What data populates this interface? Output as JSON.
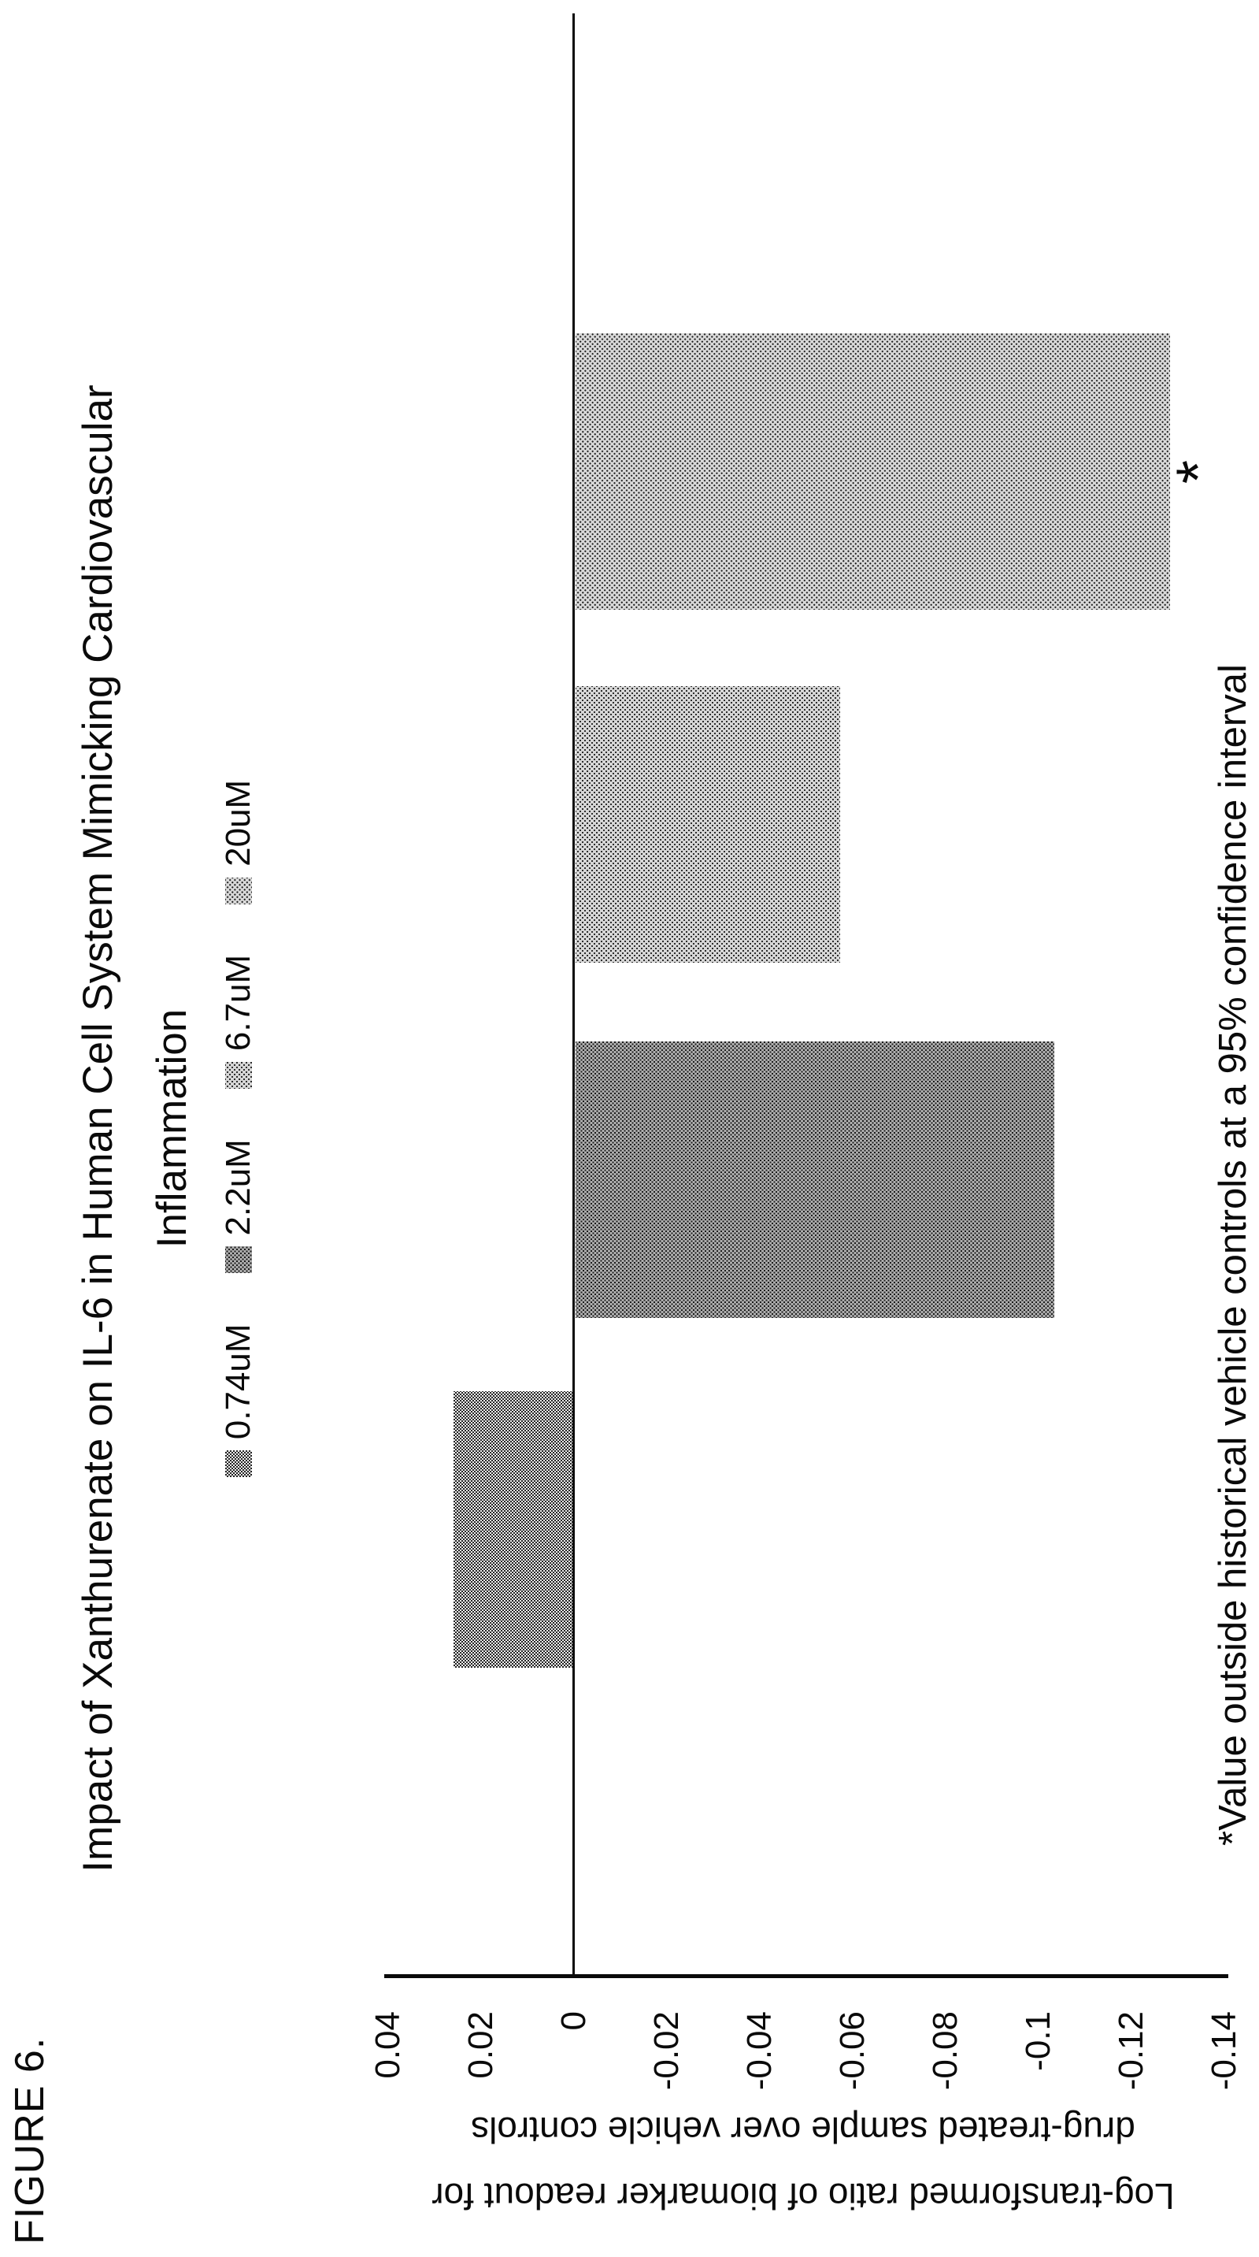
{
  "figure_label": "FIGURE 6.",
  "title": {
    "line1": "Impact of Xanthurenate on IL-6 in Human Cell System Mimicking Cardiovascular",
    "line2": "Inflammation"
  },
  "axis_title": {
    "line1": "Log-transformed ratio of biomarker readout for",
    "line2": "drug-treated sample over vehicle controls"
  },
  "annotation_star": "*",
  "footnote": "*Value outside historical vehicle controls at a 95% confidence interval",
  "chart_data": {
    "type": "bar",
    "orientation": "vertical",
    "page_rotation": "chart drawn landscape, rotated 90 degrees counter-clockwise on portrait page",
    "title": "Impact of Xanthurenate on IL-6 in Human Cell System Mimicking Cardiovascular Inflammation",
    "ylabel": "Log-transformed ratio of biomarker readout for drug-treated sample over vehicle controls",
    "categories": [
      "0.74uM",
      "2.2uM",
      "6.7uM",
      "20uM"
    ],
    "values": [
      0.026,
      -0.103,
      -0.057,
      -0.128
    ],
    "value_axis": {
      "tick_labels": [
        "0.04",
        "0.02",
        "0",
        "-0.02",
        "-0.04",
        "-0.06",
        "-0.08",
        "-0.1",
        "-0.12",
        "-0.14"
      ],
      "tick_values": [
        0.04,
        0.02,
        0,
        -0.02,
        -0.04,
        -0.06,
        -0.08,
        -0.1,
        -0.12,
        -0.14
      ],
      "range": [
        -0.14,
        0.04
      ]
    },
    "series_fill_tones": [
      "#8a8a8a",
      "#aeaeae",
      "#d6d6d6",
      "#d9d9d9"
    ],
    "fill_styles": [
      "dark checker halftone",
      "medium dot halftone",
      "light dot halftone",
      "light dot halftone"
    ],
    "legend_position": "top",
    "gridlines": false,
    "annotations": [
      {
        "category": "20uM",
        "text": "*",
        "meaning": "value outside historical vehicle controls at a 95% confidence interval"
      }
    ]
  }
}
